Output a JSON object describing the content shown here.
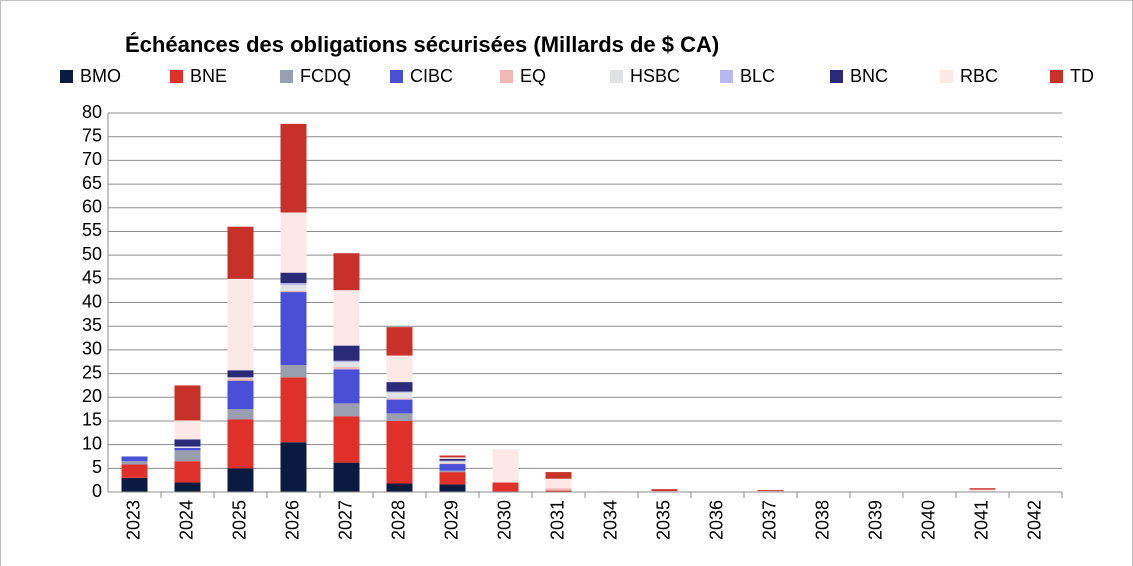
{
  "chart_data": {
    "type": "stacked_bar",
    "title": "Échéances des obligations sécurisées (Millards de $ CA)",
    "categories": [
      "2023",
      "2024",
      "2025",
      "2026",
      "2027",
      "2028",
      "2029",
      "2030",
      "2031",
      "2034",
      "2035",
      "2036",
      "2037",
      "2038",
      "2039",
      "2040",
      "2041",
      "2042"
    ],
    "series": [
      {
        "name": "BMO",
        "color": "#0b1a40",
        "values": [
          3,
          2,
          5,
          10.5,
          6.2,
          1.8,
          1.6,
          0,
          0,
          0,
          0,
          0,
          0,
          0,
          0,
          0,
          0,
          0
        ]
      },
      {
        "name": "BNE",
        "color": "#e0302a",
        "values": [
          2.8,
          4.5,
          10.3,
          13.7,
          9.8,
          13.2,
          2.6,
          2,
          0.3,
          0,
          0,
          0,
          0,
          0,
          0,
          0,
          0,
          0
        ]
      },
      {
        "name": "FCDQ",
        "color": "#9a9fb0",
        "values": [
          0.7,
          2.3,
          2.2,
          2.6,
          2.7,
          1.6,
          0.3,
          0,
          0,
          0,
          0,
          0,
          0,
          0,
          0,
          0,
          0,
          0
        ]
      },
      {
        "name": "CIBC",
        "color": "#4a4fd8",
        "values": [
          1,
          0.5,
          6,
          15.4,
          7.2,
          2.9,
          1.4,
          0,
          0,
          0,
          0,
          0,
          0,
          0,
          0,
          0,
          0,
          0
        ]
      },
      {
        "name": "EQ",
        "color": "#f2b8b4",
        "values": [
          0,
          0,
          0.5,
          0.3,
          0.5,
          0.3,
          0.2,
          0,
          0.5,
          0,
          0,
          0,
          0,
          0,
          0,
          0,
          0,
          0
        ]
      },
      {
        "name": "HSBC",
        "color": "#e0e2e6",
        "values": [
          0,
          0.3,
          0.2,
          1.2,
          1,
          1.2,
          0.3,
          0,
          0,
          0,
          0,
          0,
          0,
          0,
          0,
          0,
          0,
          0
        ]
      },
      {
        "name": "BLC",
        "color": "#b8b8ee",
        "values": [
          0,
          0,
          0,
          0.4,
          0.3,
          0.2,
          0.2,
          0,
          0,
          0,
          0,
          0,
          0,
          0,
          0,
          0,
          0,
          0
        ]
      },
      {
        "name": "BNC",
        "color": "#2a2a78",
        "values": [
          0,
          1.5,
          1.5,
          2.2,
          3.2,
          2,
          0.4,
          0,
          0,
          0,
          0,
          0,
          0,
          0,
          0,
          0,
          0,
          0
        ]
      },
      {
        "name": "RBC",
        "color": "#fde8e8",
        "values": [
          0,
          4,
          19.3,
          12.7,
          11.7,
          5.6,
          0.3,
          7,
          2,
          0.2,
          0.2,
          0,
          0.2,
          0,
          0,
          0,
          0.5,
          0
        ]
      },
      {
        "name": "TD",
        "color": "#c8302a",
        "values": [
          0,
          7.4,
          11,
          18.7,
          7.8,
          6,
          0.4,
          0,
          1.4,
          0,
          0.4,
          0,
          0.2,
          0,
          0,
          0,
          0.3,
          0
        ]
      }
    ],
    "ylim": [
      0,
      80
    ],
    "yticks": [
      0,
      5,
      10,
      15,
      20,
      25,
      30,
      35,
      40,
      45,
      50,
      55,
      60,
      65,
      70,
      75,
      80
    ],
    "grid": true,
    "legend": "top"
  }
}
